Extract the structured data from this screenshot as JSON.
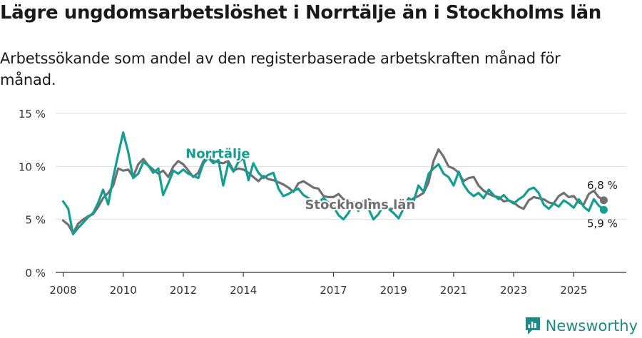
{
  "title": "Lägre ungdomsarbetslöshet i Norrtälje än i Stockholms län",
  "subtitle": "Arbetssökande som andel av den registerbaserade arbetskraften månad för månad.",
  "brand": "Newsworthy",
  "colors": {
    "norrtalje": "#139e92",
    "stockholm": "#707070",
    "grid": "#dddddd",
    "axis": "#333333",
    "brand": "#1c8a86"
  },
  "chart_data": {
    "type": "line",
    "title": "Lägre ungdomsarbetslöshet i Norrtälje än i Stockholms län",
    "xlabel": "",
    "ylabel": "",
    "xlim": [
      2007.75,
      2026.75
    ],
    "ylim": [
      0,
      15
    ],
    "yticks": [
      0,
      5,
      10,
      15
    ],
    "ytick_labels": [
      "0 %",
      "5 %",
      "10 %",
      "15 %"
    ],
    "xticks": [
      2008,
      2010,
      2012,
      2014,
      2017,
      2019,
      2021,
      2023,
      2025
    ],
    "xtick_labels": [
      "2008",
      "2010",
      "2012",
      "2014",
      "2017",
      "2019",
      "2021",
      "2023",
      "2025"
    ],
    "series": [
      {
        "name": "Stockholms län",
        "label": "Stockholms län",
        "color": "#707070",
        "end_label": "6,8 %",
        "points": [
          [
            2008.0,
            4.9
          ],
          [
            2008.17,
            4.5
          ],
          [
            2008.33,
            3.7
          ],
          [
            2008.5,
            4.6
          ],
          [
            2008.67,
            5.0
          ],
          [
            2008.83,
            5.3
          ],
          [
            2009.0,
            5.5
          ],
          [
            2009.17,
            6.2
          ],
          [
            2009.33,
            7.0
          ],
          [
            2009.5,
            7.5
          ],
          [
            2009.67,
            8.2
          ],
          [
            2009.83,
            9.8
          ],
          [
            2010.0,
            9.6
          ],
          [
            2010.17,
            9.7
          ],
          [
            2010.33,
            9.0
          ],
          [
            2010.5,
            10.2
          ],
          [
            2010.67,
            10.7
          ],
          [
            2010.83,
            10.1
          ],
          [
            2011.0,
            9.7
          ],
          [
            2011.17,
            9.3
          ],
          [
            2011.33,
            9.6
          ],
          [
            2011.5,
            9.0
          ],
          [
            2011.67,
            10.0
          ],
          [
            2011.83,
            10.5
          ],
          [
            2012.0,
            10.2
          ],
          [
            2012.17,
            9.6
          ],
          [
            2012.33,
            9.0
          ],
          [
            2012.5,
            9.4
          ],
          [
            2012.67,
            10.5
          ],
          [
            2012.83,
            11.1
          ],
          [
            2013.0,
            10.5
          ],
          [
            2013.17,
            10.4
          ],
          [
            2013.33,
            10.3
          ],
          [
            2013.5,
            10.5
          ],
          [
            2013.67,
            9.6
          ],
          [
            2013.83,
            9.8
          ],
          [
            2014.0,
            9.7
          ],
          [
            2014.17,
            9.4
          ],
          [
            2014.33,
            9.0
          ],
          [
            2014.5,
            8.6
          ],
          [
            2014.67,
            9.1
          ],
          [
            2014.83,
            8.8
          ],
          [
            2015.0,
            8.7
          ],
          [
            2015.17,
            8.5
          ],
          [
            2015.33,
            8.3
          ],
          [
            2015.5,
            8.0
          ],
          [
            2015.67,
            7.6
          ],
          [
            2015.83,
            8.4
          ],
          [
            2016.0,
            8.6
          ],
          [
            2016.17,
            8.3
          ],
          [
            2016.33,
            8.0
          ],
          [
            2016.5,
            7.9
          ],
          [
            2016.67,
            7.2
          ],
          [
            2016.83,
            7.1
          ],
          [
            2017.0,
            7.1
          ],
          [
            2017.17,
            7.4
          ],
          [
            2017.33,
            6.9
          ],
          [
            2017.5,
            6.8
          ],
          [
            2017.67,
            6.5
          ],
          [
            2017.83,
            6.2
          ],
          [
            2018.0,
            6.7
          ],
          [
            2018.17,
            6.9
          ],
          [
            2018.33,
            6.6
          ],
          [
            2018.5,
            6.4
          ],
          [
            2018.67,
            6.2
          ],
          [
            2018.83,
            6.0
          ],
          [
            2019.0,
            6.0
          ],
          [
            2019.17,
            6.2
          ],
          [
            2019.33,
            6.3
          ],
          [
            2019.5,
            6.6
          ],
          [
            2019.67,
            7.0
          ],
          [
            2019.83,
            7.2
          ],
          [
            2020.0,
            7.5
          ],
          [
            2020.17,
            8.5
          ],
          [
            2020.33,
            10.5
          ],
          [
            2020.5,
            11.6
          ],
          [
            2020.67,
            10.9
          ],
          [
            2020.83,
            10.0
          ],
          [
            2021.0,
            9.8
          ],
          [
            2021.17,
            9.4
          ],
          [
            2021.33,
            8.6
          ],
          [
            2021.5,
            8.9
          ],
          [
            2021.67,
            9.0
          ],
          [
            2021.83,
            8.2
          ],
          [
            2022.0,
            7.7
          ],
          [
            2022.17,
            7.4
          ],
          [
            2022.33,
            7.2
          ],
          [
            2022.5,
            7.1
          ],
          [
            2022.67,
            6.7
          ],
          [
            2022.83,
            6.8
          ],
          [
            2023.0,
            6.6
          ],
          [
            2023.17,
            6.2
          ],
          [
            2023.33,
            6.0
          ],
          [
            2023.5,
            6.8
          ],
          [
            2023.67,
            7.1
          ],
          [
            2023.83,
            7.0
          ],
          [
            2024.0,
            6.9
          ],
          [
            2024.17,
            6.6
          ],
          [
            2024.33,
            6.5
          ],
          [
            2024.5,
            7.2
          ],
          [
            2024.67,
            7.5
          ],
          [
            2024.83,
            7.1
          ],
          [
            2025.0,
            7.2
          ],
          [
            2025.17,
            6.6
          ],
          [
            2025.33,
            6.4
          ],
          [
            2025.5,
            7.4
          ],
          [
            2025.67,
            7.7
          ],
          [
            2025.83,
            7.1
          ],
          [
            2026.0,
            6.8
          ]
        ]
      },
      {
        "name": "Norrtälje",
        "label": "Norrtälje",
        "color": "#139e92",
        "end_label": "5,9 %",
        "points": [
          [
            2008.0,
            6.7
          ],
          [
            2008.17,
            6.0
          ],
          [
            2008.33,
            3.6
          ],
          [
            2008.5,
            4.2
          ],
          [
            2008.67,
            4.7
          ],
          [
            2008.83,
            5.2
          ],
          [
            2009.0,
            5.6
          ],
          [
            2009.17,
            6.6
          ],
          [
            2009.33,
            7.8
          ],
          [
            2009.5,
            6.4
          ],
          [
            2009.67,
            9.0
          ],
          [
            2009.83,
            11.1
          ],
          [
            2010.0,
            13.2
          ],
          [
            2010.17,
            11.3
          ],
          [
            2010.33,
            8.9
          ],
          [
            2010.5,
            9.3
          ],
          [
            2010.67,
            10.4
          ],
          [
            2010.83,
            10.1
          ],
          [
            2011.0,
            9.4
          ],
          [
            2011.17,
            9.8
          ],
          [
            2011.33,
            7.3
          ],
          [
            2011.5,
            8.4
          ],
          [
            2011.67,
            9.6
          ],
          [
            2011.83,
            9.3
          ],
          [
            2012.0,
            9.7
          ],
          [
            2012.17,
            9.3
          ],
          [
            2012.33,
            9.1
          ],
          [
            2012.5,
            8.9
          ],
          [
            2012.67,
            10.3
          ],
          [
            2012.83,
            10.8
          ],
          [
            2013.0,
            10.3
          ],
          [
            2013.17,
            10.6
          ],
          [
            2013.33,
            8.2
          ],
          [
            2013.5,
            10.3
          ],
          [
            2013.67,
            9.5
          ],
          [
            2013.83,
            10.4
          ],
          [
            2014.0,
            10.8
          ],
          [
            2014.17,
            8.7
          ],
          [
            2014.33,
            10.3
          ],
          [
            2014.5,
            9.4
          ],
          [
            2014.67,
            8.9
          ],
          [
            2014.83,
            9.2
          ],
          [
            2015.0,
            9.4
          ],
          [
            2015.17,
            7.9
          ],
          [
            2015.33,
            7.2
          ],
          [
            2015.5,
            7.4
          ],
          [
            2015.67,
            7.7
          ],
          [
            2015.83,
            7.9
          ],
          [
            2016.0,
            7.3
          ],
          [
            2016.17,
            7.0
          ],
          [
            2016.33,
            6.7
          ],
          [
            2016.5,
            6.6
          ],
          [
            2016.67,
            7.0
          ],
          [
            2016.83,
            6.6
          ],
          [
            2017.0,
            6.2
          ],
          [
            2017.17,
            5.4
          ],
          [
            2017.33,
            5.0
          ],
          [
            2017.5,
            5.6
          ],
          [
            2017.67,
            6.6
          ],
          [
            2017.83,
            5.8
          ],
          [
            2018.0,
            6.6
          ],
          [
            2018.17,
            6.0
          ],
          [
            2018.33,
            5.0
          ],
          [
            2018.5,
            5.5
          ],
          [
            2018.67,
            6.3
          ],
          [
            2018.83,
            6.0
          ],
          [
            2019.0,
            5.6
          ],
          [
            2019.17,
            5.1
          ],
          [
            2019.33,
            6.0
          ],
          [
            2019.5,
            7.0
          ],
          [
            2019.67,
            6.7
          ],
          [
            2019.83,
            8.2
          ],
          [
            2020.0,
            7.6
          ],
          [
            2020.17,
            9.3
          ],
          [
            2020.33,
            9.8
          ],
          [
            2020.5,
            10.2
          ],
          [
            2020.67,
            9.3
          ],
          [
            2020.83,
            9.0
          ],
          [
            2021.0,
            8.2
          ],
          [
            2021.17,
            9.5
          ],
          [
            2021.33,
            8.3
          ],
          [
            2021.5,
            7.6
          ],
          [
            2021.67,
            7.2
          ],
          [
            2021.83,
            7.5
          ],
          [
            2022.0,
            7.0
          ],
          [
            2022.17,
            7.8
          ],
          [
            2022.33,
            7.3
          ],
          [
            2022.5,
            6.9
          ],
          [
            2022.67,
            7.3
          ],
          [
            2022.83,
            6.8
          ],
          [
            2023.0,
            6.5
          ],
          [
            2023.17,
            6.9
          ],
          [
            2023.33,
            7.2
          ],
          [
            2023.5,
            7.8
          ],
          [
            2023.67,
            8.0
          ],
          [
            2023.83,
            7.5
          ],
          [
            2024.0,
            6.4
          ],
          [
            2024.17,
            6.0
          ],
          [
            2024.33,
            6.5
          ],
          [
            2024.5,
            6.2
          ],
          [
            2024.67,
            6.8
          ],
          [
            2024.83,
            6.5
          ],
          [
            2025.0,
            6.1
          ],
          [
            2025.17,
            6.9
          ],
          [
            2025.33,
            6.2
          ],
          [
            2025.5,
            5.8
          ],
          [
            2025.67,
            6.9
          ],
          [
            2025.83,
            6.3
          ],
          [
            2026.0,
            5.9
          ]
        ]
      }
    ]
  }
}
